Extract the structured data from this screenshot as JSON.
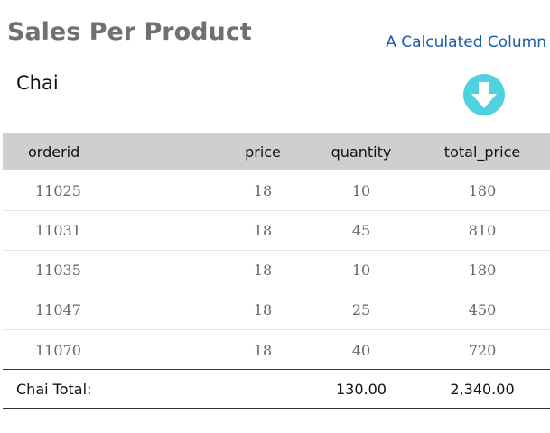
{
  "page_title": "Sales Per Product",
  "calculated_column_label": "A Calculated Column",
  "product_name": "Chai",
  "colors": {
    "accent": "#4fd1e0",
    "header_bg": "#cfcfcf",
    "link": "#1f5aa8"
  },
  "icons": {
    "arrow": "arrow-down-circle-icon"
  },
  "table": {
    "columns": [
      "orderid",
      "price",
      "quantity",
      "total_price"
    ],
    "rows": [
      [
        "11025",
        "18",
        "10",
        "180"
      ],
      [
        "11031",
        "18",
        "45",
        "810"
      ],
      [
        "11035",
        "18",
        "10",
        "180"
      ],
      [
        "11047",
        "18",
        "25",
        "450"
      ],
      [
        "11070",
        "18",
        "40",
        "720"
      ]
    ],
    "footer": {
      "label": "Chai Total:",
      "quantity": "130.00",
      "total_price": "2,340.00"
    }
  }
}
